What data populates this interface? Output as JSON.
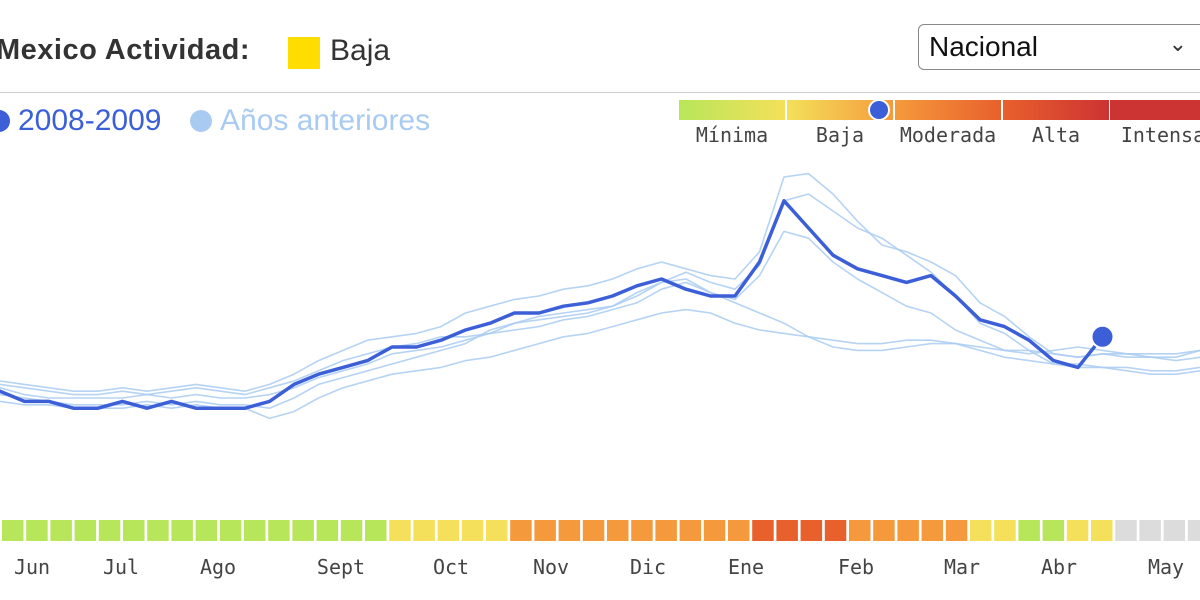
{
  "header": {
    "title": "Mexico Actividad:",
    "level_label": "Baja",
    "level_color": "#ffdd00"
  },
  "region_select": {
    "selected": "Nacional"
  },
  "legend": {
    "current": {
      "label": "2008-2009",
      "color": "#3c5fd8"
    },
    "previous": {
      "label": "Años anteriores",
      "color": "#a9cbf2"
    }
  },
  "scale": {
    "levels": [
      {
        "label": "Mínima",
        "color": "#b8e65a"
      },
      {
        "label": "Baja",
        "color": "#f4e05a"
      },
      {
        "label": "Moderada",
        "color": "#f59a3c"
      },
      {
        "label": "Alta",
        "color": "#e8602c"
      },
      {
        "label": "Intensa",
        "color": "#cc3333"
      }
    ],
    "current_level_marker": "Baja"
  },
  "chart_data": {
    "type": "line",
    "title": "",
    "xlabel": "",
    "ylabel": "",
    "x_month_labels": [
      "Jun",
      "Jul",
      "Ago",
      "Sept",
      "Oct",
      "Nov",
      "Dic",
      "Ene",
      "Feb",
      "Mar",
      "Abr",
      "May"
    ],
    "y_axis_shown": false,
    "ylim": [
      0,
      100
    ],
    "n_weeks": 50,
    "series": [
      {
        "name": "2008-2009",
        "values": [
          32,
          29,
          29,
          27,
          27,
          29,
          27,
          29,
          27,
          27,
          27,
          29,
          34,
          37,
          39,
          41,
          45,
          45,
          47,
          50,
          52,
          55,
          55,
          57,
          58,
          60,
          63,
          65,
          62,
          60,
          60,
          70,
          88,
          80,
          72,
          68,
          66,
          64,
          66,
          60,
          53,
          51,
          47,
          41,
          39,
          48
        ]
      },
      {
        "name": "",
        "values": [
          33,
          31,
          30,
          30,
          30,
          30,
          31,
          30,
          31,
          30,
          30,
          31,
          33,
          36,
          38,
          40,
          43,
          44,
          45,
          47,
          49,
          52,
          54,
          55,
          56,
          57,
          60,
          64,
          65,
          61,
          59,
          66,
          79,
          77,
          70,
          65,
          61,
          57,
          55,
          50,
          47,
          44,
          44,
          43,
          42,
          43,
          43,
          43,
          43,
          44
        ]
      },
      {
        "name": "",
        "values": [
          35,
          34,
          33,
          32,
          32,
          33,
          32,
          33,
          34,
          33,
          32,
          34,
          37,
          41,
          44,
          47,
          48,
          49,
          51,
          55,
          57,
          59,
          60,
          62,
          63,
          65,
          68,
          70,
          68,
          66,
          65,
          73,
          95,
          96,
          90,
          82,
          75,
          73,
          70,
          66,
          58,
          54,
          48,
          43,
          42,
          43,
          42,
          42,
          42,
          44
        ]
      },
      {
        "name": "",
        "values": [
          31,
          30,
          29,
          28,
          28,
          28,
          29,
          28,
          29,
          28,
          28,
          27,
          30,
          34,
          36,
          38,
          40,
          42,
          44,
          46,
          50,
          52,
          53,
          54,
          55,
          57,
          61,
          64,
          67,
          64,
          62,
          69,
          88,
          90,
          85,
          80,
          77,
          72,
          67,
          60,
          52,
          49,
          44,
          40,
          39,
          39,
          38,
          37,
          37,
          38
        ]
      },
      {
        "name": "",
        "values": [
          34,
          33,
          32,
          31,
          31,
          32,
          31,
          32,
          33,
          32,
          31,
          33,
          35,
          38,
          41,
          43,
          45,
          46,
          48,
          48,
          49,
          50,
          51,
          53,
          54,
          56,
          58,
          62,
          64,
          61,
          58,
          55,
          52,
          48,
          45,
          44,
          44,
          45,
          46,
          46,
          45,
          44,
          43,
          44,
          45,
          44,
          43,
          42,
          41,
          42
        ]
      },
      {
        "name": "",
        "values": [
          29,
          28,
          28,
          27,
          27,
          27,
          28,
          27,
          28,
          27,
          27,
          24,
          26,
          30,
          33,
          35,
          37,
          38,
          39,
          41,
          42,
          44,
          46,
          48,
          49,
          51,
          53,
          55,
          56,
          55,
          52,
          50,
          49,
          48,
          47,
          46,
          46,
          47,
          47,
          46,
          44,
          42,
          41,
          40,
          40,
          39,
          39,
          38,
          38,
          39
        ]
      }
    ],
    "current_point": {
      "series": "2008-2009",
      "week_index": 45,
      "value": 48
    },
    "weekly_activity_levels": [
      "Mínima",
      "Mínima",
      "Mínima",
      "Mínima",
      "Mínima",
      "Mínima",
      "Mínima",
      "Mínima",
      "Mínima",
      "Mínima",
      "Mínima",
      "Mínima",
      "Mínima",
      "Mínima",
      "Mínima",
      "Mínima",
      "Baja",
      "Baja",
      "Baja",
      "Baja",
      "Baja",
      "Moderada",
      "Moderada",
      "Moderada",
      "Moderada",
      "Moderada",
      "Moderada",
      "Moderada",
      "Moderada",
      "Moderada",
      "Moderada",
      "Alta",
      "Alta",
      "Alta",
      "Alta",
      "Moderada",
      "Moderada",
      "Moderada",
      "Moderada",
      "Moderada",
      "Baja",
      "Baja",
      "Mínima",
      "Mínima",
      "Baja",
      "Baja",
      "Sin datos",
      "Sin datos",
      "Sin datos",
      "Sin datos"
    ],
    "no_data_color": "#dcdcdc"
  }
}
